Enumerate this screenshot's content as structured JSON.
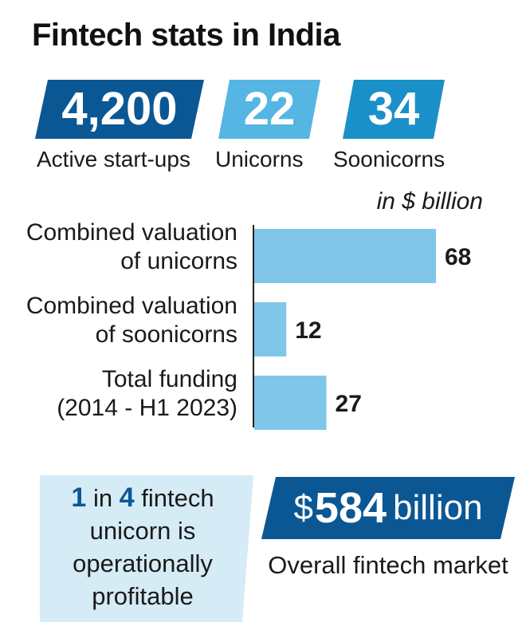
{
  "title": "Fintech stats in India",
  "stats": [
    {
      "value": "4,200",
      "label": "Active start-ups",
      "color": "#0b5794"
    },
    {
      "value": "22",
      "label": "Unicorns",
      "color": "#55b6e3"
    },
    {
      "value": "34",
      "label": "Soonicorns",
      "color": "#1a90c9"
    }
  ],
  "chart_data": {
    "type": "bar",
    "orientation": "horizontal",
    "unit_note": "in $ billion",
    "categories": [
      "Combined valuation\nof unicorns",
      "Combined valuation\nof soonicorns",
      "Total funding\n(2014 - H1 2023)"
    ],
    "values": [
      68,
      12,
      27
    ],
    "bar_color": "#7fc6e9",
    "xlim": [
      0,
      68
    ]
  },
  "profitability": {
    "n1": "1",
    "text1": " in ",
    "n2": "4",
    "text2": " fintech unicorn is operationally profitable",
    "color": "#d5ebf6"
  },
  "market": {
    "currency": "$",
    "value": "584",
    "unit": "billion",
    "label": "Overall fintech market",
    "color": "#0b5794"
  }
}
